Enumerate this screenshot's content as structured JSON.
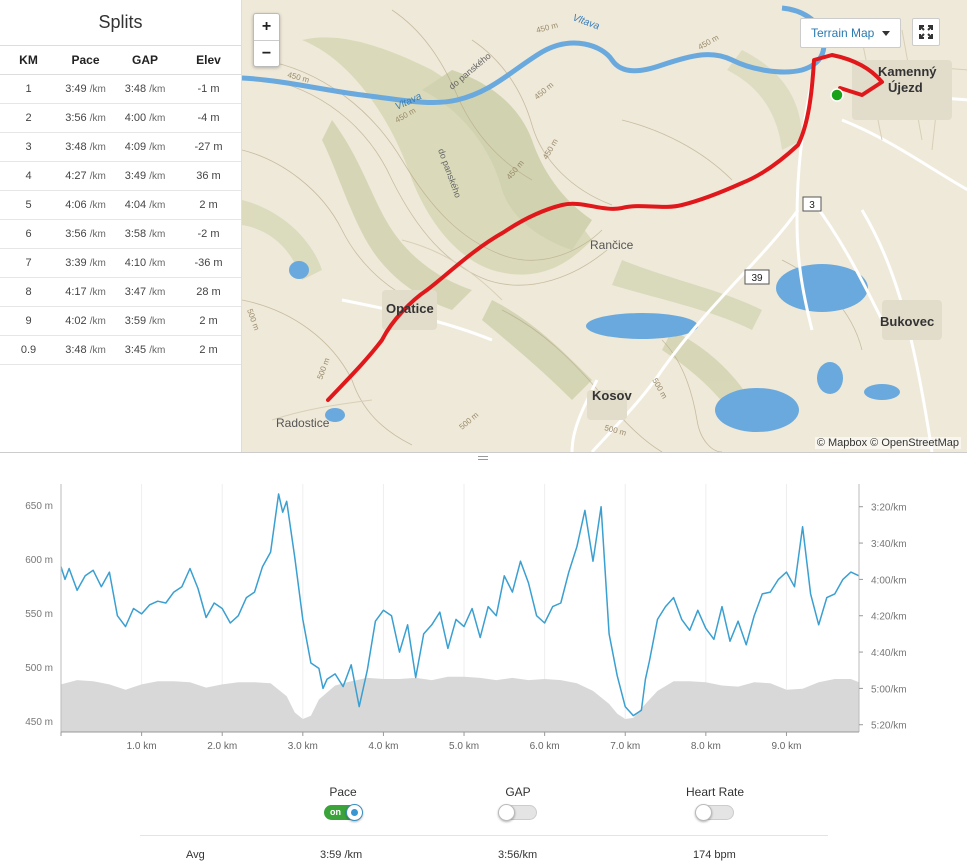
{
  "splits": {
    "title": "Splits",
    "columns": [
      "KM",
      "Pace",
      "GAP",
      "Elev"
    ],
    "rows": [
      {
        "km": "1",
        "pace": "3:49",
        "gap": "3:48",
        "elev": "-1 m"
      },
      {
        "km": "2",
        "pace": "3:56",
        "gap": "4:00",
        "elev": "-4 m"
      },
      {
        "km": "3",
        "pace": "3:48",
        "gap": "4:09",
        "elev": "-27 m"
      },
      {
        "km": "4",
        "pace": "4:27",
        "gap": "3:49",
        "elev": "36 m"
      },
      {
        "km": "5",
        "pace": "4:06",
        "gap": "4:04",
        "elev": "2 m"
      },
      {
        "km": "6",
        "pace": "3:56",
        "gap": "3:58",
        "elev": "-2 m"
      },
      {
        "km": "7",
        "pace": "3:39",
        "gap": "4:10",
        "elev": "-36 m"
      },
      {
        "km": "8",
        "pace": "4:17",
        "gap": "3:47",
        "elev": "28 m"
      },
      {
        "km": "9",
        "pace": "4:02",
        "gap": "3:59",
        "elev": "2 m"
      },
      {
        "km": "0.9",
        "pace": "3:48",
        "gap": "3:45",
        "elev": "2 m"
      }
    ],
    "pace_unit": "/km"
  },
  "map": {
    "zoom_in": "+",
    "zoom_out": "−",
    "map_type": "Terrain Map",
    "attribution": "© Mapbox © OpenStreetMap",
    "place_names": [
      "Kamenný",
      "Újezd",
      "Rančice",
      "Opatice",
      "Bukovec",
      "Kosov",
      "Radostice",
      "Vltava",
      "Vltava",
      "do panského",
      "do panského"
    ],
    "road_numbers": [
      "3",
      "39"
    ],
    "contour_labels": [
      "450 m",
      "450 m",
      "450 m",
      "450 m",
      "450 m",
      "450 m",
      "500 m",
      "500 m",
      "500 m",
      "500 m",
      "500 m",
      "450 m"
    ],
    "route_color": "#e0181b",
    "start_marker_color": "#1aa31a",
    "water_color": "#6aa9dd",
    "icons": [
      "fullscreen-icon",
      "caret-down-icon"
    ]
  },
  "chart_data": {
    "type": "area",
    "x_label": "",
    "x_ticks": [
      "1.0 km",
      "2.0 km",
      "3.0 km",
      "4.0 km",
      "5.0 km",
      "6.0 km",
      "7.0 km",
      "8.0 km",
      "9.0 km"
    ],
    "x_range_km": [
      0,
      9.9
    ],
    "left_axis": {
      "ticks": [
        "650 m",
        "600 m",
        "550 m",
        "500 m",
        "450 m"
      ],
      "range_m": [
        440,
        660
      ]
    },
    "right_axis": {
      "ticks": [
        "3:20/km",
        "3:40/km",
        "4:00/km",
        "4:20/km",
        "4:40/km",
        "5:00/km",
        "5:20/km"
      ],
      "range_sec_per_km": [
        193,
        324
      ]
    },
    "series": [
      {
        "name": "Pace",
        "color": "#3a9fd1",
        "unit": "sec/km",
        "x": [
          0.0,
          0.05,
          0.1,
          0.2,
          0.3,
          0.4,
          0.5,
          0.6,
          0.7,
          0.8,
          0.9,
          1.0,
          1.1,
          1.2,
          1.3,
          1.4,
          1.5,
          1.6,
          1.7,
          1.8,
          1.9,
          2.0,
          2.1,
          2.2,
          2.3,
          2.4,
          2.5,
          2.6,
          2.7,
          2.75,
          2.8,
          2.9,
          3.0,
          3.1,
          3.2,
          3.25,
          3.3,
          3.4,
          3.5,
          3.6,
          3.7,
          3.8,
          3.9,
          4.0,
          4.1,
          4.2,
          4.3,
          4.4,
          4.5,
          4.6,
          4.7,
          4.8,
          4.9,
          5.0,
          5.1,
          5.2,
          5.3,
          5.4,
          5.5,
          5.6,
          5.7,
          5.8,
          5.9,
          6.0,
          6.1,
          6.2,
          6.3,
          6.4,
          6.5,
          6.6,
          6.7,
          6.8,
          6.9,
          7.0,
          7.1,
          7.2,
          7.25,
          7.3,
          7.4,
          7.5,
          7.6,
          7.7,
          7.8,
          7.9,
          8.0,
          8.1,
          8.2,
          8.3,
          8.4,
          8.5,
          8.6,
          8.7,
          8.8,
          8.9,
          9.0,
          9.1,
          9.2,
          9.3,
          9.4,
          9.5,
          9.6,
          9.7,
          9.8,
          9.9
        ],
        "values": [
          233,
          240,
          234,
          246,
          238,
          235,
          244,
          236,
          260,
          266,
          256,
          259,
          254,
          252,
          253,
          247,
          244,
          234,
          245,
          261,
          253,
          256,
          264,
          260,
          250,
          247,
          233,
          225,
          193,
          203,
          197,
          228,
          262,
          286,
          289,
          300,
          295,
          292,
          299,
          287,
          310,
          290,
          263,
          257,
          260,
          280,
          265,
          294,
          270,
          265,
          258,
          278,
          262,
          266,
          256,
          272,
          255,
          260,
          238,
          247,
          230,
          242,
          260,
          264,
          255,
          253,
          236,
          222,
          202,
          230,
          200,
          270,
          293,
          310,
          315,
          312,
          295,
          285,
          262,
          255,
          250,
          262,
          268,
          257,
          267,
          273,
          255,
          274,
          263,
          276,
          260,
          248,
          247,
          240,
          236,
          244,
          211,
          248,
          265,
          250,
          248,
          240,
          236,
          238
        ]
      },
      {
        "name": "Elevation",
        "color": "#d8d8d8",
        "unit": "m",
        "x": [
          0.0,
          0.2,
          0.4,
          0.6,
          0.8,
          1.0,
          1.2,
          1.4,
          1.6,
          1.8,
          2.0,
          2.2,
          2.4,
          2.6,
          2.8,
          2.9,
          3.0,
          3.1,
          3.2,
          3.4,
          3.6,
          3.8,
          4.0,
          4.2,
          4.4,
          4.6,
          4.8,
          5.0,
          5.2,
          5.4,
          5.6,
          5.8,
          6.0,
          6.2,
          6.4,
          6.6,
          6.8,
          6.9,
          7.0,
          7.1,
          7.2,
          7.4,
          7.6,
          7.8,
          8.0,
          8.2,
          8.4,
          8.6,
          8.8,
          9.0,
          9.2,
          9.4,
          9.6,
          9.8,
          9.9
        ],
        "values": [
          484,
          488,
          487,
          484,
          479,
          484,
          487,
          487,
          486,
          481,
          484,
          486,
          486,
          485,
          473,
          458,
          452,
          455,
          470,
          483,
          487,
          490,
          489,
          489,
          490,
          488,
          491,
          491,
          490,
          488,
          490,
          488,
          489,
          488,
          485,
          478,
          466,
          457,
          452,
          453,
          462,
          478,
          487,
          487,
          486,
          483,
          482,
          486,
          485,
          479,
          480,
          486,
          489,
          489,
          486
        ]
      }
    ]
  },
  "toggles": {
    "pace": {
      "label": "Pace",
      "state": "on",
      "on_text": "on"
    },
    "gap": {
      "label": "GAP",
      "state": "off"
    },
    "hr": {
      "label": "Heart Rate",
      "state": "off"
    }
  },
  "avg": {
    "label": "Avg",
    "pace": "3:59 /km",
    "gap": "3:56/km",
    "hr": "174 bpm"
  },
  "colors": {
    "link": "#2a7ab0",
    "toggle_on": "#3aa43a",
    "pace_line": "#3a9fd1",
    "elev_fill": "#d8d8d8"
  }
}
